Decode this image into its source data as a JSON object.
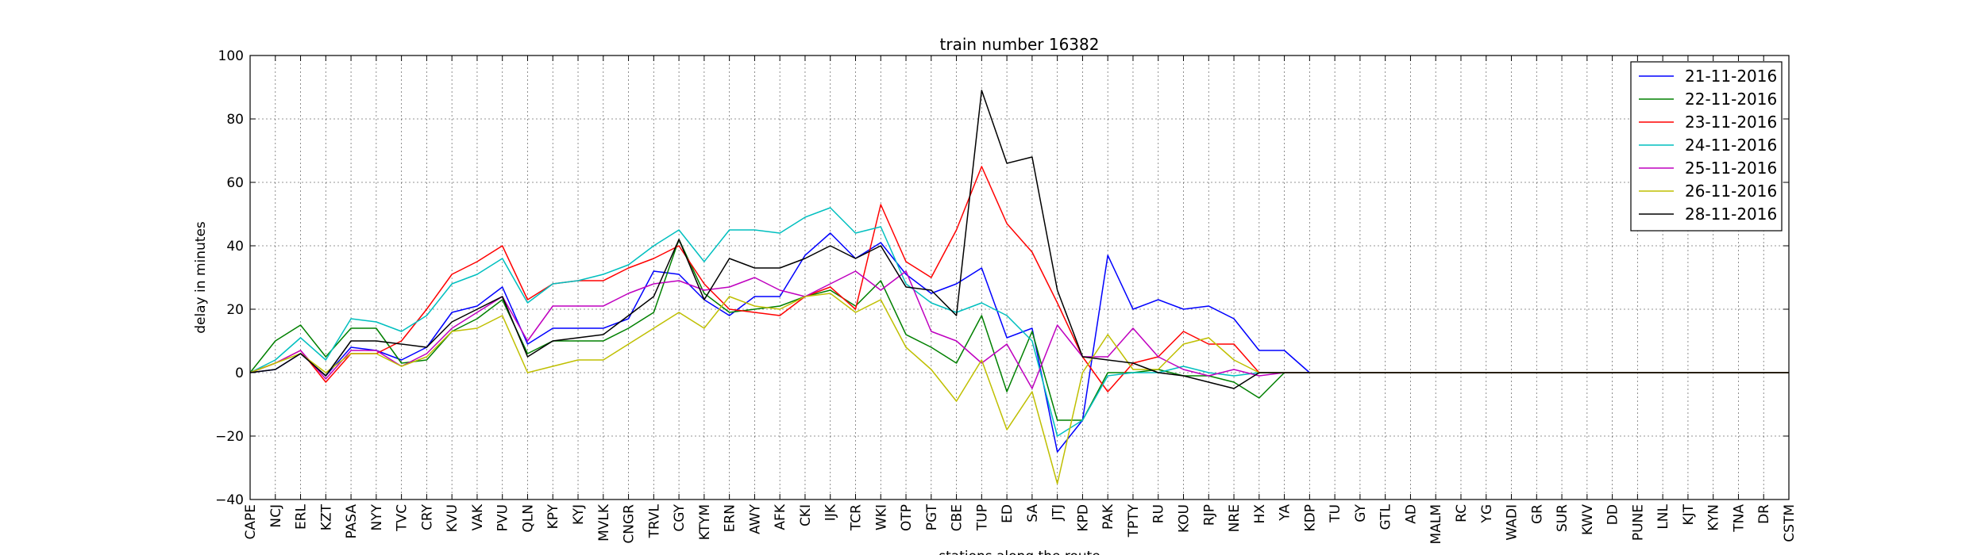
{
  "chart_data": {
    "type": "line",
    "title": "train number 16382",
    "xlabel": "stations along the route",
    "ylabel": "delay in minutes",
    "ylim": [
      -40,
      100
    ],
    "yticks": [
      -40,
      -20,
      0,
      20,
      40,
      60,
      80,
      100
    ],
    "grid": true,
    "legend_position": "top-right",
    "categories": [
      "CAPE",
      "NCJ",
      "ERL",
      "KZT",
      "PASA",
      "NYY",
      "TVC",
      "CRY",
      "KVU",
      "VAK",
      "PVU",
      "QLN",
      "KPY",
      "KYJ",
      "MVLK",
      "CNGR",
      "TRVL",
      "CGY",
      "KTYM",
      "ERN",
      "AWY",
      "AFK",
      "CKI",
      "IJK",
      "TCR",
      "WKI",
      "OTP",
      "PGT",
      "CBE",
      "TUP",
      "ED",
      "SA",
      "JTJ",
      "KPD",
      "PAK",
      "TPTY",
      "RU",
      "KOU",
      "RJP",
      "NRE",
      "HX",
      "YA",
      "KDP",
      "TU",
      "GY",
      "GTL",
      "AD",
      "MALM",
      "RC",
      "YG",
      "WADI",
      "GR",
      "SUR",
      "KWV",
      "DD",
      "PUNE",
      "LNL",
      "KJT",
      "KYN",
      "TNA",
      "DR",
      "CSTM"
    ],
    "series": [
      {
        "name": "21-11-2016",
        "color": "#0000ff",
        "values": [
          0,
          1,
          6,
          -1,
          8,
          7,
          4,
          8,
          19,
          21,
          27,
          9,
          14,
          14,
          14,
          17,
          32,
          31,
          23,
          18,
          24,
          24,
          37,
          44,
          36,
          41,
          31,
          25,
          28,
          33,
          11,
          14,
          -25,
          -15,
          37,
          20,
          23,
          20,
          21,
          17,
          7,
          7,
          0,
          0,
          0,
          0,
          0,
          0,
          0,
          0,
          0,
          0,
          0,
          0,
          0,
          0,
          0,
          0,
          0,
          0,
          0,
          0
        ]
      },
      {
        "name": "22-11-2016",
        "color": "#008000",
        "values": [
          0,
          10,
          15,
          5,
          14,
          14,
          3,
          4,
          13,
          17,
          23,
          6,
          10,
          10,
          10,
          14,
          19,
          42,
          25,
          19,
          20,
          21,
          24,
          26,
          21,
          29,
          12,
          8,
          3,
          18,
          -6,
          13,
          -15,
          -15,
          0,
          0,
          1,
          -1,
          -1,
          -3,
          -8,
          0,
          0,
          0,
          0,
          0,
          0,
          0,
          0,
          0,
          0,
          0,
          0,
          0,
          0,
          0,
          0,
          0,
          0,
          0,
          0,
          0
        ]
      },
      {
        "name": "23-11-2016",
        "color": "#ff0000",
        "values": [
          0,
          3,
          7,
          -3,
          6,
          6,
          10,
          20,
          31,
          35,
          40,
          23,
          28,
          29,
          29,
          33,
          36,
          40,
          28,
          20,
          19,
          18,
          24,
          27,
          20,
          53,
          35,
          30,
          45,
          65,
          47,
          38,
          22,
          5,
          -6,
          3,
          5,
          13,
          9,
          9,
          0,
          0,
          0,
          0,
          0,
          0,
          0,
          0,
          0,
          0,
          0,
          0,
          0,
          0,
          0,
          0,
          0,
          0,
          0,
          0,
          0,
          0
        ]
      },
      {
        "name": "24-11-2016",
        "color": "#00bfbf",
        "values": [
          0,
          4,
          11,
          4,
          17,
          16,
          13,
          18,
          28,
          31,
          36,
          22,
          28,
          29,
          31,
          34,
          40,
          45,
          35,
          45,
          45,
          44,
          49,
          52,
          44,
          46,
          28,
          22,
          19,
          22,
          18,
          10,
          -20,
          -15,
          -1,
          0,
          0,
          2,
          0,
          -1,
          0,
          0,
          0,
          0,
          0,
          0,
          0,
          0,
          0,
          0,
          0,
          0,
          0,
          0,
          0,
          0,
          0,
          0,
          0,
          0,
          0,
          0
        ]
      },
      {
        "name": "25-11-2016",
        "color": "#bf00bf",
        "values": [
          0,
          3,
          7,
          -2,
          7,
          7,
          2,
          6,
          14,
          19,
          24,
          10,
          21,
          21,
          21,
          25,
          28,
          29,
          26,
          27,
          30,
          26,
          24,
          28,
          32,
          26,
          32,
          13,
          10,
          3,
          9,
          -5,
          15,
          5,
          5,
          14,
          5,
          1,
          -1,
          1,
          -1,
          0,
          0,
          0,
          0,
          0,
          0,
          0,
          0,
          0,
          0,
          0,
          0,
          0,
          0,
          0,
          0,
          0,
          0,
          0,
          0,
          0
        ]
      },
      {
        "name": "26-11-2016",
        "color": "#bfbf00",
        "values": [
          0,
          3,
          6,
          0,
          6,
          6,
          2,
          5,
          13,
          14,
          18,
          0,
          2,
          4,
          4,
          9,
          14,
          19,
          14,
          24,
          21,
          20,
          24,
          25,
          19,
          23,
          8,
          1,
          -9,
          4,
          -18,
          -6,
          -35,
          0,
          12,
          1,
          1,
          9,
          11,
          4,
          0,
          0,
          0,
          0,
          0,
          0,
          0,
          0,
          0,
          0,
          0,
          0,
          0,
          0,
          0,
          0,
          0,
          0,
          0,
          0,
          0,
          0
        ]
      },
      {
        "name": "28-11-2016",
        "color": "#000000",
        "values": [
          0,
          1,
          6,
          -1,
          10,
          10,
          9,
          8,
          16,
          20,
          24,
          5,
          10,
          11,
          12,
          18,
          24,
          42,
          23,
          36,
          33,
          33,
          36,
          40,
          36,
          40,
          27,
          26,
          18,
          89,
          66,
          68,
          26,
          5,
          4,
          3,
          0,
          -1,
          -3,
          -5,
          0,
          0,
          0,
          0,
          0,
          0,
          0,
          0,
          0,
          0,
          0,
          0,
          0,
          0,
          0,
          0,
          0,
          0,
          0,
          0,
          0,
          0
        ]
      }
    ]
  }
}
